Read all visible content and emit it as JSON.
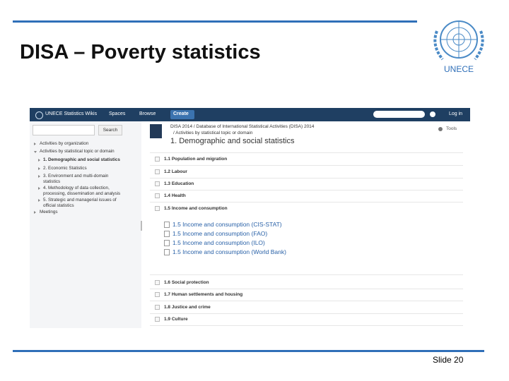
{
  "slide": {
    "title": "DISA – Poverty statistics",
    "logo_label": "UNECE",
    "footer": "Slide 20"
  },
  "screenshot": {
    "topbar": {
      "brand": "UNECE Statistics Wikis",
      "menus": [
        "Spaces",
        "Browse"
      ],
      "create": "Create",
      "login": "Log in"
    },
    "sidebar": {
      "search_button": "Search",
      "items": [
        "Activities by organization",
        "Activities by statistical topic or domain",
        "1. Demographic and social statistics",
        "2. Economic Statistics",
        "3. Environment and multi-domain statistics",
        "4. Methodology of data collection, processing, dissemination and analysis",
        "5. Strategic and managerial issues of official statistics",
        "Meetings"
      ]
    },
    "breadcrumb": [
      "DISA 2014 / Database of International Statistical Activities (DISA) 2014",
      "/ Activities by statistical topic or domain"
    ],
    "tools": "Tools",
    "page_title": "1. Demographic and social statistics",
    "sections_before": [
      "1.1 Population and migration",
      "1.2 Labour",
      "1.3 Education",
      "1.4 Health"
    ],
    "expanded": {
      "label": "1.5 Income and consumption",
      "links": [
        "1.5 Income and consumption (CIS-STAT)",
        "1.5 Income and consumption (FAO)",
        "1.5 Income and consumption (ILO)",
        "1.5 Income and consumption (World Bank)"
      ]
    },
    "sections_after": [
      "1.6 Social protection",
      "1.7 Human settlements and housing",
      "1.8 Justice and crime",
      "1.9 Culture"
    ]
  }
}
